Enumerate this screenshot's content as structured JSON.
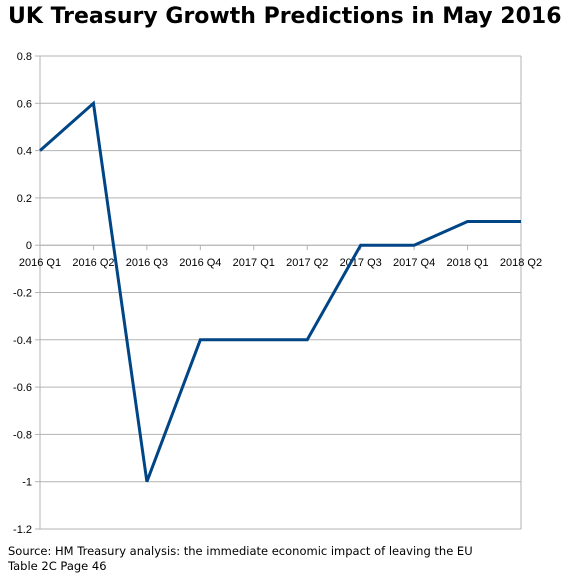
{
  "chart_data": {
    "type": "line",
    "title": "UK Treasury Growth Predictions in May 2016",
    "categories": [
      "2016 Q1",
      "2016 Q2",
      "2016 Q3",
      "2016 Q4",
      "2017 Q1",
      "2017 Q2",
      "2017 Q3",
      "2017 Q4",
      "2018 Q1",
      "2018 Q2"
    ],
    "series": [
      {
        "values": [
          0.4,
          0.6,
          -1.0,
          -0.4,
          -0.4,
          -0.4,
          0.0,
          0.0,
          0.1,
          0.1
        ],
        "color": "#004586"
      }
    ],
    "ylim": [
      -1.2,
      0.8
    ],
    "yticks": [
      "0.8",
      "0.6",
      "0.4",
      "0.2",
      "0",
      "-0.2",
      "-0.4",
      "-0.6",
      "-0.8",
      "-1",
      "-1.2"
    ],
    "xlabel": "",
    "ylabel": "",
    "grid": true,
    "legend": "none"
  },
  "source": {
    "line1": "Source: HM Treasury analysis: the immediate economic impact of leaving the EU",
    "line2": "Table 2C Page 46"
  }
}
